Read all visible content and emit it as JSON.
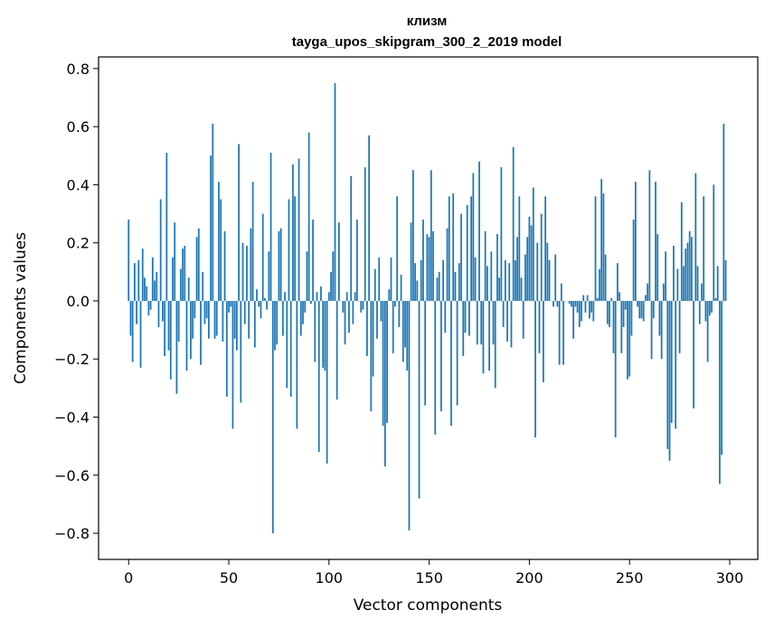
{
  "chart_data": {
    "type": "bar",
    "title": "клизм",
    "subtitle": "tayga_upos_skipgram_300_2_2019 model",
    "xlabel": "Vector components",
    "ylabel": "Components values",
    "xlim": [
      -15,
      314
    ],
    "ylim": [
      -0.89,
      0.84
    ],
    "xticks": [
      0,
      50,
      100,
      150,
      200,
      250,
      300
    ],
    "xtick_labels": [
      "0",
      "50",
      "100",
      "150",
      "200",
      "250",
      "300"
    ],
    "yticks": [
      -0.8,
      -0.6,
      -0.4,
      -0.2,
      0.0,
      0.2,
      0.4,
      0.6,
      0.8
    ],
    "ytick_labels": [
      "−0.8",
      "−0.6",
      "−0.4",
      "−0.2",
      "0.0",
      "0.2",
      "0.4",
      "0.6",
      "0.8"
    ],
    "color": "#1f77b4",
    "bar_width": 0.8,
    "values": [
      0.28,
      -0.12,
      -0.21,
      0.13,
      -0.08,
      0.14,
      -0.23,
      0.18,
      0.08,
      0.05,
      -0.05,
      -0.03,
      0.15,
      0.07,
      0.1,
      -0.09,
      0.35,
      -0.07,
      -0.19,
      0.51,
      -0.17,
      -0.27,
      0.15,
      0.27,
      -0.32,
      -0.14,
      0.11,
      0.18,
      0.19,
      -0.24,
      0.08,
      -0.2,
      -0.13,
      -0.06,
      0.22,
      0.25,
      -0.22,
      0.1,
      -0.08,
      -0.06,
      -0.13,
      0.5,
      0.61,
      -0.13,
      -0.12,
      0.41,
      0.35,
      -0.14,
      0.24,
      -0.33,
      -0.04,
      -0.02,
      -0.44,
      -0.13,
      -0.17,
      0.54,
      -0.35,
      0.2,
      -0.08,
      0.19,
      -0.13,
      0.25,
      0.41,
      -0.16,
      0.04,
      -0.02,
      -0.06,
      0.3,
      0.01,
      -0.03,
      0.17,
      0.51,
      -0.8,
      -0.17,
      -0.15,
      0.24,
      0.25,
      -0.12,
      0.03,
      -0.3,
      0.35,
      -0.33,
      0.47,
      0.36,
      -0.44,
      0.49,
      -0.12,
      -0.08,
      -0.04,
      0.17,
      0.58,
      -0.01,
      0.28,
      -0.21,
      0.03,
      -0.52,
      0.05,
      -0.23,
      -0.24,
      -0.56,
      0.03,
      0.1,
      0.17,
      0.75,
      -0.34,
      0.27,
      0.0,
      -0.04,
      -0.15,
      0.03,
      -0.11,
      0.43,
      -0.08,
      0.03,
      0.28,
      0.0,
      -0.04,
      -0.03,
      0.46,
      -0.19,
      0.57,
      -0.38,
      -0.26,
      0.11,
      -0.13,
      0.15,
      -0.07,
      -0.43,
      -0.57,
      -0.42,
      0.04,
      0.15,
      -0.18,
      -0.02,
      0.36,
      -0.09,
      0.09,
      -0.21,
      -0.16,
      -0.24,
      -0.79,
      0.27,
      0.45,
      0.13,
      0.07,
      -0.68,
      0.14,
      0.28,
      -0.36,
      0.23,
      0.22,
      0.45,
      0.24,
      -0.46,
      0.08,
      0.1,
      -0.38,
      0.14,
      -0.11,
      0.25,
      0.36,
      -0.43,
      0.37,
      0.1,
      -0.36,
      0.13,
      0.3,
      -0.19,
      -0.11,
      0.33,
      -0.12,
      0.36,
      0.44,
      0.15,
      -0.15,
      0.48,
      -0.15,
      -0.25,
      0.24,
      0.12,
      -0.24,
      0.17,
      -0.15,
      -0.3,
      0.23,
      0.08,
      0.46,
      -0.09,
      0.14,
      -0.14,
      0.13,
      -0.16,
      0.53,
      0.14,
      0.22,
      0.36,
      0.08,
      -0.13,
      0.16,
      0.22,
      0.29,
      0.26,
      0.39,
      -0.47,
      0.2,
      -0.18,
      0.3,
      -0.28,
      0.36,
      0.2,
      0.14,
      0.0,
      -0.02,
      0.16,
      -0.02,
      -0.22,
      0.06,
      -0.22,
      0.0,
      0.0,
      -0.01,
      -0.02,
      -0.13,
      -0.02,
      -0.04,
      -0.09,
      -0.07,
      0.02,
      -0.04,
      0.02,
      -0.06,
      -0.04,
      -0.07,
      0.36,
      0.01,
      0.11,
      0.42,
      0.37,
      0.16,
      -0.08,
      -0.09,
      0.01,
      -0.18,
      -0.47,
      0.13,
      0.03,
      -0.18,
      -0.09,
      -0.03,
      -0.27,
      -0.26,
      -0.12,
      0.28,
      0.41,
      -0.02,
      -0.06,
      -0.06,
      -0.07,
      0.02,
      0.06,
      0.45,
      -0.2,
      -0.06,
      0.41,
      0.23,
      -0.12,
      -0.2,
      0.06,
      0.17,
      -0.51,
      -0.55,
      -0.42,
      0.19,
      -0.44,
      0.11,
      -0.18,
      0.34,
      0.12,
      0.18,
      0.2,
      0.24,
      0.22,
      -0.37,
      0.44,
      0.12,
      -0.08,
      0.06,
      0.36,
      -0.07,
      -0.21,
      -0.05,
      -0.04,
      0.4,
      0.01,
      0.12,
      -0.63,
      -0.53,
      0.61,
      0.14
    ]
  }
}
